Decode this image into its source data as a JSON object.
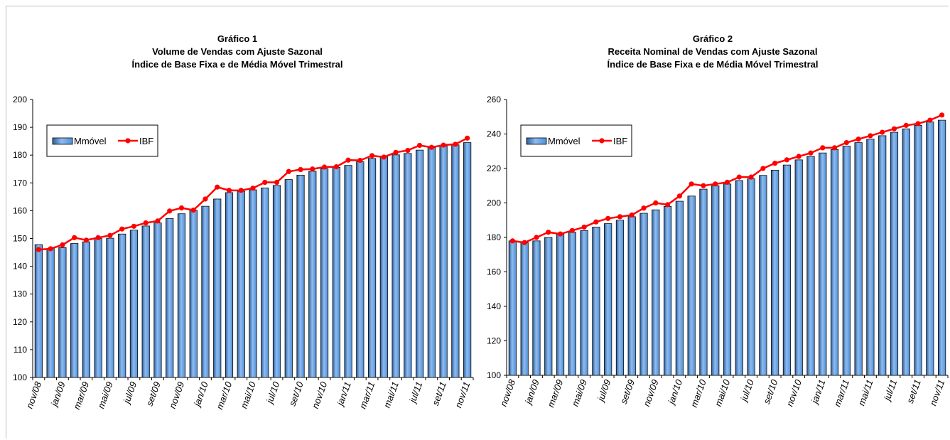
{
  "colors": {
    "bar": "#4f8fd6",
    "bar_edge": "#0a0a0a",
    "line": "#ff0000"
  },
  "chart_data": [
    {
      "type": "bar",
      "title_lines": [
        "Gráfico 1",
        "Volume de Vendas com Ajuste Sazonal",
        "Índice de Base Fixa e de Média Móvel Trimestral"
      ],
      "ylim": [
        100,
        200
      ],
      "yticks": [
        100,
        110,
        120,
        130,
        140,
        150,
        160,
        170,
        180,
        190,
        200
      ],
      "categories": [
        "nov/08",
        "dez/08",
        "jan/09",
        "fev/09",
        "mar/09",
        "abr/09",
        "mai/09",
        "jun/09",
        "jul/09",
        "ago/09",
        "set/09",
        "out/09",
        "nov/09",
        "dez/09",
        "jan/10",
        "fev/10",
        "mar/10",
        "abr/10",
        "mai/10",
        "jun/10",
        "jul/10",
        "ago/10",
        "set/10",
        "out/10",
        "nov/10",
        "dez/10",
        "jan/11",
        "fev/11",
        "mar/11",
        "abr/11",
        "mai/11",
        "jun/11",
        "jul/11",
        "ago/11",
        "set/11",
        "out/11",
        "nov/11"
      ],
      "visible_xticks": [
        "nov/08",
        "jan/09",
        "mar/09",
        "mai/09",
        "jul/09",
        "set/09",
        "nov/09",
        "jan/10",
        "mar/10",
        "mai/10",
        "jul/10",
        "set/10",
        "nov/10",
        "jan/11",
        "mar/11",
        "mai/11",
        "jul/11",
        "set/11",
        "nov/11"
      ],
      "legend": {
        "bar_label": "Mmóvel",
        "line_label": "IBF",
        "position": "top-left"
      },
      "series": [
        {
          "name": "Mmóvel",
          "kind": "bar",
          "values": [
            147.8,
            146.3,
            146.7,
            148.2,
            148.8,
            150.0,
            150.1,
            151.6,
            153.0,
            154.5,
            155.6,
            157.2,
            158.9,
            160.2,
            161.6,
            164.2,
            166.5,
            167.0,
            167.5,
            168.2,
            169.1,
            171.2,
            172.8,
            174.2,
            175.1,
            175.6,
            176.3,
            177.6,
            178.8,
            179.4,
            180.1,
            180.6,
            181.8,
            182.7,
            183.3,
            183.7,
            184.5
          ]
        },
        {
          "name": "IBF",
          "kind": "line",
          "values": [
            146.0,
            146.3,
            147.7,
            150.3,
            149.4,
            150.3,
            151.1,
            153.4,
            154.4,
            155.6,
            156.3,
            159.9,
            161.0,
            160.2,
            164.2,
            168.5,
            167.3,
            167.3,
            168.1,
            170.2,
            170.2,
            174.1,
            174.8,
            175.0,
            175.7,
            175.8,
            178.2,
            178.1,
            179.8,
            179.3,
            181.0,
            181.7,
            183.5,
            182.8,
            183.6,
            183.9,
            186.1
          ]
        }
      ]
    },
    {
      "type": "bar",
      "title_lines": [
        "Gráfico 2",
        "Receita Nominal de Vendas com Ajuste Sazonal",
        "Índice de Base Fixa e de Média Móvel Trimestral"
      ],
      "ylim": [
        100,
        260
      ],
      "yticks": [
        100,
        120,
        140,
        160,
        180,
        200,
        220,
        240,
        260
      ],
      "categories": [
        "nov/08",
        "dez/08",
        "jan/09",
        "fev/09",
        "mar/09",
        "abr/09",
        "mai/09",
        "jun/09",
        "jul/09",
        "ago/09",
        "set/09",
        "out/09",
        "nov/09",
        "dez/09",
        "jan/10",
        "fev/10",
        "mar/10",
        "abr/10",
        "mai/10",
        "jun/10",
        "jul/10",
        "ago/10",
        "set/10",
        "out/10",
        "nov/10",
        "dez/10",
        "jan/11",
        "fev/11",
        "mar/11",
        "abr/11",
        "mai/11",
        "jun/11",
        "jul/11",
        "ago/11",
        "set/11",
        "out/11",
        "nov/11"
      ],
      "visible_xticks": [
        "nov/08",
        "jan/09",
        "mar/09",
        "mai/09",
        "jul/09",
        "set/09",
        "nov/09",
        "jan/10",
        "mar/10",
        "mai/10",
        "jul/10",
        "set/10",
        "nov/10",
        "jan/11",
        "mar/11",
        "mai/11",
        "jul/11",
        "set/11",
        "nov/11"
      ],
      "legend": {
        "bar_label": "Mmóvel",
        "line_label": "IBF",
        "position": "top-left"
      },
      "series": [
        {
          "name": "Mmóvel",
          "kind": "bar",
          "values": [
            178,
            177,
            178,
            180,
            182,
            183,
            184,
            186,
            188,
            190,
            192,
            194,
            196,
            198,
            201,
            204,
            208,
            210,
            211,
            213,
            214,
            216,
            219,
            222,
            225,
            227,
            229,
            231,
            233,
            235,
            237,
            239,
            241,
            243,
            245,
            247,
            248
          ]
        },
        {
          "name": "IBF",
          "kind": "line",
          "values": [
            178,
            177,
            180,
            183,
            182,
            184,
            186,
            189,
            191,
            192,
            193,
            197,
            200,
            199,
            204,
            211,
            210,
            211,
            212,
            215,
            215,
            220,
            223,
            225,
            227,
            229,
            232,
            232,
            235,
            237,
            239,
            241,
            243,
            245,
            246,
            248,
            251
          ]
        }
      ]
    }
  ]
}
